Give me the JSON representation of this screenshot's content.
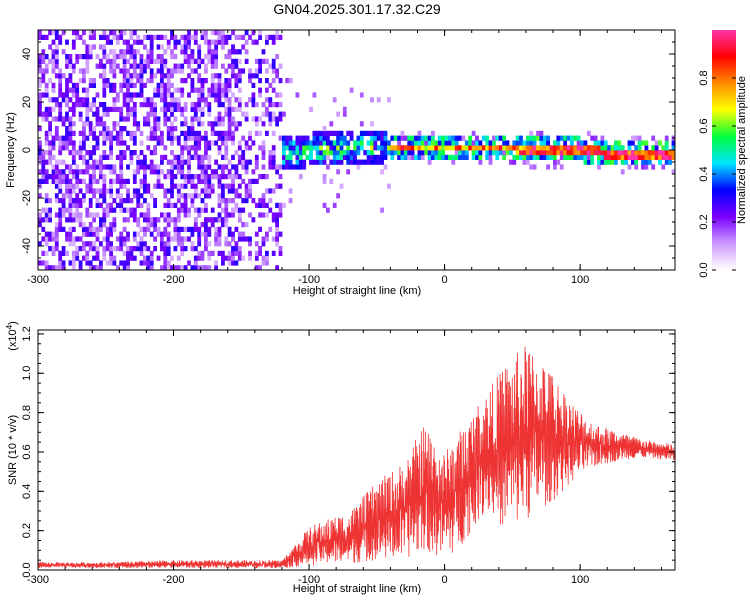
{
  "title": "GN04.2025.301.17.32.C29",
  "chart_data": [
    {
      "type": "heatmap",
      "xlabel": "Height of straight line (km)",
      "ylabel": "Frequency (Hz)",
      "xlim": [
        -300,
        170
      ],
      "ylim": [
        -50,
        50
      ],
      "xticks": [
        -300,
        -200,
        -100,
        0,
        100
      ],
      "yticks": [
        -40,
        -20,
        0,
        20,
        40
      ],
      "colorbar": {
        "label": "Normalized spectral amplitude",
        "range": [
          0,
          1
        ],
        "ticks": [
          "0.0",
          "0.2",
          "0.4",
          "0.6",
          "0.8"
        ],
        "colormap": [
          "#ffffff",
          "#cc99ff",
          "#7a00ff",
          "#0000ff",
          "#00e5ff",
          "#00ff3c",
          "#ffff00",
          "#ff8c00",
          "#ff0000",
          "#ff33aa"
        ]
      },
      "ridge": [
        {
          "x": -140,
          "freq": -3
        },
        {
          "x": -100,
          "freq": -1
        },
        {
          "x": -50,
          "freq": 0
        },
        {
          "x": 0,
          "freq": 0
        },
        {
          "x": 50,
          "freq": 0
        },
        {
          "x": 100,
          "freq": -1
        },
        {
          "x": 130,
          "freq": -3
        },
        {
          "x": 170,
          "freq": -2
        }
      ]
    },
    {
      "type": "line",
      "xlabel": "Height of straight line (km)",
      "ylabel": "SNR (10 * v/v)",
      "y_multiplier": "(x10",
      "y_multiplier_exp": "4",
      "xlim": [
        -300,
        170
      ],
      "ylim": [
        0,
        1.22
      ],
      "xticks": [
        -300,
        -200,
        -100,
        0,
        100
      ],
      "yticks": [
        "0.0",
        "0.2",
        "0.4",
        "0.6",
        "0.8",
        "1.0",
        "1.2"
      ],
      "color": "#ee3333",
      "envelope": [
        {
          "x": -300,
          "min": 0.01,
          "max": 0.04
        },
        {
          "x": -250,
          "min": 0.01,
          "max": 0.04
        },
        {
          "x": -200,
          "min": 0.01,
          "max": 0.05
        },
        {
          "x": -150,
          "min": 0.01,
          "max": 0.05
        },
        {
          "x": -120,
          "min": 0.01,
          "max": 0.05
        },
        {
          "x": -100,
          "min": 0.02,
          "max": 0.22
        },
        {
          "x": -90,
          "min": 0.03,
          "max": 0.25
        },
        {
          "x": -70,
          "min": 0.03,
          "max": 0.3
        },
        {
          "x": -50,
          "min": 0.05,
          "max": 0.45
        },
        {
          "x": -30,
          "min": 0.05,
          "max": 0.55
        },
        {
          "x": -15,
          "min": 0.1,
          "max": 0.75
        },
        {
          "x": 0,
          "min": 0.05,
          "max": 0.6
        },
        {
          "x": 10,
          "min": 0.1,
          "max": 0.7
        },
        {
          "x": 20,
          "min": 0.2,
          "max": 0.8
        },
        {
          "x": 30,
          "min": 0.3,
          "max": 0.9
        },
        {
          "x": 45,
          "min": 0.2,
          "max": 1.05
        },
        {
          "x": 60,
          "min": 0.25,
          "max": 1.15
        },
        {
          "x": 70,
          "min": 0.3,
          "max": 1.1
        },
        {
          "x": 80,
          "min": 0.35,
          "max": 1.0
        },
        {
          "x": 95,
          "min": 0.45,
          "max": 0.85
        },
        {
          "x": 110,
          "min": 0.52,
          "max": 0.75
        },
        {
          "x": 130,
          "min": 0.56,
          "max": 0.7
        },
        {
          "x": 150,
          "min": 0.57,
          "max": 0.66
        },
        {
          "x": 170,
          "min": 0.55,
          "max": 0.64
        }
      ]
    }
  ]
}
